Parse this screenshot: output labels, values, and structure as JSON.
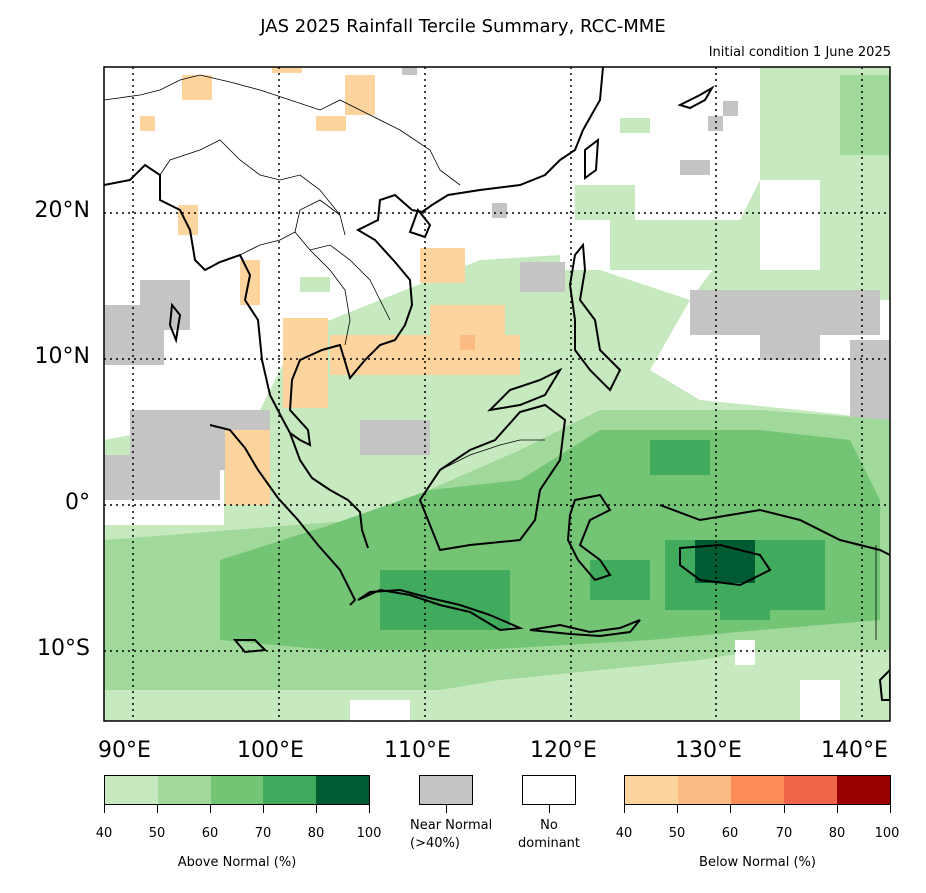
{
  "title": "JAS 2025 Rainfall Tercile Summary, RCC-MME",
  "subtitle": "Initial condition 1 June 2025",
  "lat_labels": [
    "20°N",
    "10°N",
    "0°",
    "10°S"
  ],
  "lon_labels": [
    "90°E",
    "100°E",
    "110°E",
    "120°E",
    "130°E",
    "140°E"
  ],
  "above": {
    "label": "Above Normal (%)",
    "ticks": [
      "40",
      "50",
      "60",
      "70",
      "80",
      "100"
    ],
    "colors": [
      "#c7e9c0",
      "#a1d99b",
      "#74c476",
      "#41ab5d",
      "#005a32"
    ]
  },
  "near": {
    "label": "Near Normal (>40%)",
    "label_line1": "Near Normal",
    "label_line2": "(>40%)",
    "color": "#c4c4c4"
  },
  "none": {
    "label": "No dominant",
    "label_line1": "No",
    "label_line2": "dominant",
    "color": "#ffffff"
  },
  "below": {
    "label": "Below Normal (%)",
    "ticks": [
      "40",
      "50",
      "60",
      "70",
      "80",
      "100"
    ],
    "colors": [
      "#fdd49e",
      "#fdbb84",
      "#fc8d59",
      "#ef6548",
      "#990000"
    ]
  }
}
